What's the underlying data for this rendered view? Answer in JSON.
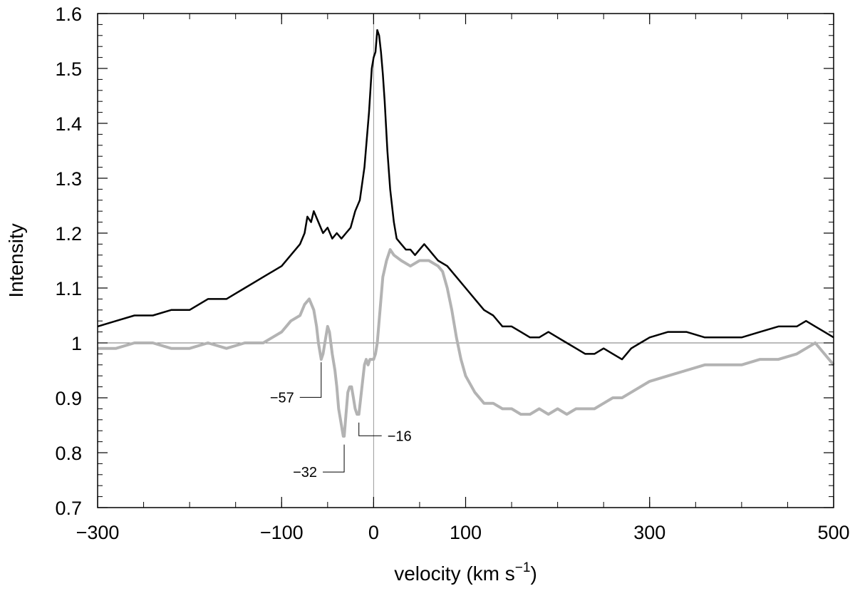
{
  "chart_data": {
    "type": "line",
    "title": "",
    "xlabel": "velocity (km s",
    "xlabel_sup": "−1",
    "xlabel_close": ")",
    "ylabel": "Intensity",
    "xlim": [
      -300,
      500
    ],
    "ylim": [
      0.7,
      1.6
    ],
    "x_tick_values": [
      -300,
      -100,
      0,
      100,
      300,
      500
    ],
    "x_tick_labels": [
      "−300",
      "−100",
      "0",
      "100",
      "300",
      "500"
    ],
    "x_minor_step": 50,
    "y_tick_values": [
      0.7,
      0.8,
      0.9,
      1.0,
      1.1,
      1.2,
      1.3,
      1.4,
      1.5,
      1.6
    ],
    "y_tick_labels": [
      "0.7",
      "0.8",
      "0.9",
      "1",
      "1.1",
      "1.2",
      "1.3",
      "1.4",
      "1.5",
      "1.6"
    ],
    "y_minor_step": 0.02,
    "reference_lines": {
      "horizontal_y": 1.0,
      "vertical_x": 0
    },
    "grid": false,
    "legend": "none",
    "series": [
      {
        "color": "#000000",
        "x": [
          -300,
          -280,
          -260,
          -240,
          -220,
          -200,
          -180,
          -160,
          -150,
          -140,
          -130,
          -120,
          -110,
          -100,
          -90,
          -80,
          -75,
          -72,
          -68,
          -65,
          -60,
          -55,
          -50,
          -45,
          -40,
          -35,
          -30,
          -25,
          -20,
          -15,
          -10,
          -5,
          -2,
          0,
          2,
          4,
          6,
          8,
          10,
          12,
          15,
          18,
          22,
          25,
          30,
          35,
          40,
          45,
          50,
          55,
          60,
          65,
          70,
          80,
          90,
          100,
          110,
          120,
          130,
          140,
          150,
          160,
          170,
          180,
          190,
          200,
          210,
          220,
          230,
          240,
          250,
          260,
          270,
          280,
          290,
          300,
          320,
          340,
          360,
          380,
          400,
          420,
          440,
          460,
          470,
          480,
          490,
          500
        ],
        "y": [
          1.03,
          1.04,
          1.05,
          1.05,
          1.06,
          1.06,
          1.08,
          1.08,
          1.09,
          1.1,
          1.11,
          1.12,
          1.13,
          1.14,
          1.16,
          1.18,
          1.2,
          1.23,
          1.22,
          1.24,
          1.22,
          1.2,
          1.21,
          1.19,
          1.2,
          1.19,
          1.2,
          1.21,
          1.24,
          1.26,
          1.32,
          1.42,
          1.5,
          1.52,
          1.53,
          1.57,
          1.56,
          1.53,
          1.49,
          1.44,
          1.35,
          1.28,
          1.22,
          1.19,
          1.18,
          1.17,
          1.17,
          1.16,
          1.17,
          1.18,
          1.17,
          1.16,
          1.15,
          1.14,
          1.12,
          1.1,
          1.08,
          1.06,
          1.05,
          1.03,
          1.03,
          1.02,
          1.01,
          1.01,
          1.02,
          1.01,
          1.0,
          0.99,
          0.98,
          0.98,
          0.99,
          0.98,
          0.97,
          0.99,
          1.0,
          1.01,
          1.02,
          1.02,
          1.01,
          1.01,
          1.01,
          1.02,
          1.03,
          1.03,
          1.04,
          1.03,
          1.02,
          1.01
        ]
      },
      {
        "color": "#b3b3b3",
        "x": [
          -300,
          -280,
          -260,
          -240,
          -220,
          -200,
          -180,
          -160,
          -140,
          -120,
          -110,
          -100,
          -90,
          -80,
          -75,
          -70,
          -65,
          -62,
          -60,
          -57,
          -55,
          -52,
          -50,
          -48,
          -45,
          -42,
          -40,
          -38,
          -35,
          -33,
          -32,
          -30,
          -28,
          -26,
          -24,
          -22,
          -20,
          -18,
          -16,
          -14,
          -12,
          -10,
          -8,
          -6,
          -4,
          -2,
          0,
          2,
          4,
          6,
          8,
          10,
          14,
          18,
          22,
          30,
          40,
          50,
          60,
          70,
          75,
          80,
          85,
          90,
          95,
          100,
          110,
          120,
          130,
          140,
          150,
          160,
          170,
          180,
          190,
          200,
          210,
          220,
          230,
          240,
          250,
          260,
          270,
          280,
          300,
          320,
          340,
          360,
          380,
          400,
          420,
          440,
          460,
          470,
          480,
          490,
          500
        ],
        "y": [
          0.99,
          0.99,
          1.0,
          1.0,
          0.99,
          0.99,
          1.0,
          0.99,
          1.0,
          1.0,
          1.01,
          1.02,
          1.04,
          1.05,
          1.07,
          1.08,
          1.06,
          1.03,
          1.0,
          0.97,
          0.98,
          1.01,
          1.03,
          1.02,
          0.98,
          0.95,
          0.92,
          0.88,
          0.85,
          0.83,
          0.83,
          0.87,
          0.91,
          0.92,
          0.92,
          0.9,
          0.88,
          0.87,
          0.87,
          0.9,
          0.93,
          0.96,
          0.97,
          0.96,
          0.97,
          0.97,
          0.97,
          0.98,
          1.0,
          1.04,
          1.08,
          1.12,
          1.15,
          1.17,
          1.16,
          1.15,
          1.14,
          1.15,
          1.15,
          1.14,
          1.13,
          1.1,
          1.06,
          1.01,
          0.97,
          0.94,
          0.91,
          0.89,
          0.89,
          0.88,
          0.88,
          0.87,
          0.87,
          0.88,
          0.87,
          0.88,
          0.87,
          0.88,
          0.88,
          0.88,
          0.89,
          0.9,
          0.9,
          0.91,
          0.93,
          0.94,
          0.95,
          0.96,
          0.96,
          0.96,
          0.97,
          0.97,
          0.98,
          0.99,
          1.0,
          0.98,
          0.96
        ]
      }
    ],
    "annotations": [
      {
        "label": "−57",
        "x": -57,
        "y": 0.97,
        "label_x": -94,
        "label_y": 0.893
      },
      {
        "label": "−32",
        "x": -32,
        "y": 0.82,
        "label_x": -55,
        "label_y": 0.757
      },
      {
        "label": "−16",
        "x": -16,
        "y": 0.86,
        "label_x": 0,
        "label_y": 0.823
      }
    ]
  }
}
